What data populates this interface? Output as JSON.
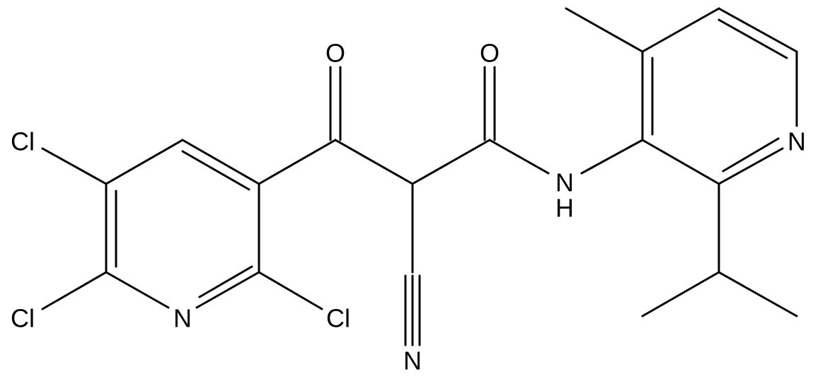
{
  "atoms": {
    "cl_5": "Cl",
    "cl_6": "Cl",
    "n_left_ring": "N",
    "cl_2": "Cl",
    "o_ketone": "O",
    "o_amide": "O",
    "n_cyano": "N",
    "n_amide": "N",
    "h_amide": "H",
    "n_right_ring": "N"
  }
}
